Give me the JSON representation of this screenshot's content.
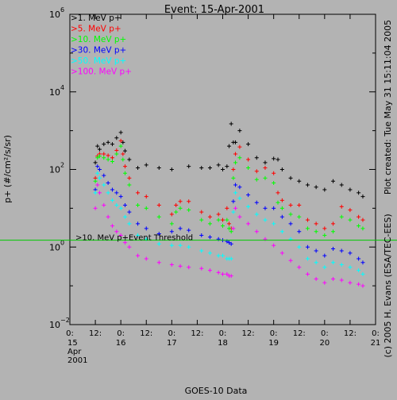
{
  "chart_data": {
    "type": "scatter",
    "title": "Event: 15-Apr-2001",
    "xlabel": "GOES-10 Data",
    "ylabel": "p+ (#/cm²/s/sr)",
    "yscale": "log",
    "ylim": [
      0.01,
      1000000
    ],
    "xlim": [
      0,
      144
    ],
    "x_unit": "hours since 15 Apr 2001 00:00 UT",
    "grid": false,
    "legend_position": "top-left",
    "x_ticks": [
      {
        "x": 0,
        "label": "0:"
      },
      {
        "x": 12,
        "label": "12:"
      },
      {
        "x": 24,
        "label": "0:"
      },
      {
        "x": 36,
        "label": "12:"
      },
      {
        "x": 48,
        "label": "0:"
      },
      {
        "x": 60,
        "label": "12:"
      },
      {
        "x": 72,
        "label": "0:"
      },
      {
        "x": 84,
        "label": "12:"
      },
      {
        "x": 96,
        "label": "0:"
      },
      {
        "x": 108,
        "label": "12:"
      },
      {
        "x": 120,
        "label": "0:"
      },
      {
        "x": 132,
        "label": "12:"
      },
      {
        "x": 144,
        "label": "0:"
      }
    ],
    "day_labels": [
      {
        "x": 0,
        "label": "15"
      },
      {
        "x": 24,
        "label": "16"
      },
      {
        "x": 48,
        "label": "17"
      },
      {
        "x": 72,
        "label": "18"
      },
      {
        "x": 96,
        "label": "19"
      },
      {
        "x": 120,
        "label": "20"
      },
      {
        "x": 144,
        "label": "21"
      }
    ],
    "month_label": "Apr",
    "year_label": "2001",
    "y_ticks": [
      {
        "exp": -2,
        "label": "10",
        "sup": "−2"
      },
      {
        "exp": 0,
        "label": "10",
        "sup": "0"
      },
      {
        "exp": 2,
        "label": "10",
        "sup": "2"
      },
      {
        "exp": 4,
        "label": "10",
        "sup": "4"
      },
      {
        "exp": 6,
        "label": "10",
        "sup": "6"
      }
    ],
    "threshold": {
      "label": ">10. MeV p+Event Threshold",
      "value": 1.5,
      "color": "#00c800"
    },
    "series": [
      {
        "name": ">1. MeV p+",
        "color": "#000000",
        "x": [
          12,
          13,
          14,
          16,
          18,
          20,
          22,
          24,
          25,
          26,
          28,
          32,
          36,
          42,
          48,
          56,
          62,
          66,
          70,
          72,
          74,
          75,
          76,
          77,
          78,
          80,
          84,
          88,
          92,
          96,
          98,
          100,
          104,
          108,
          112,
          116,
          120,
          124,
          128,
          132,
          136,
          138
        ],
        "y": [
          150,
          400,
          330,
          450,
          500,
          450,
          650,
          900,
          500,
          300,
          180,
          110,
          130,
          110,
          100,
          120,
          110,
          110,
          130,
          100,
          120,
          400,
          1500,
          500,
          500,
          1000,
          450,
          200,
          150,
          190,
          180,
          100,
          60,
          50,
          40,
          35,
          30,
          50,
          40,
          30,
          25,
          20
        ]
      },
      {
        "name": ">5. MeV p+",
        "color": "#ff0000",
        "x": [
          12,
          13,
          14,
          16,
          18,
          20,
          22,
          24,
          25,
          26,
          28,
          32,
          36,
          42,
          48,
          50,
          52,
          56,
          62,
          66,
          70,
          72,
          74,
          75,
          76,
          77,
          78,
          80,
          84,
          88,
          92,
          96,
          98,
          100,
          104,
          108,
          112,
          116,
          120,
          124,
          128,
          132,
          136,
          138
        ],
        "y": [
          60,
          220,
          250,
          250,
          230,
          200,
          310,
          550,
          250,
          120,
          60,
          25,
          20,
          12,
          7,
          12,
          15,
          15,
          8,
          6,
          7,
          5,
          10,
          4,
          3,
          100,
          250,
          380,
          180,
          90,
          110,
          80,
          25,
          16,
          12,
          12,
          5,
          4,
          3,
          4,
          11,
          9,
          6,
          5
        ]
      },
      {
        "name": ">10. MeV p+",
        "color": "#00ff00",
        "x": [
          12,
          13,
          14,
          16,
          18,
          20,
          22,
          24,
          25,
          26,
          28,
          32,
          36,
          42,
          48,
          50,
          52,
          56,
          62,
          66,
          70,
          72,
          74,
          75,
          76,
          77,
          78,
          80,
          84,
          88,
          92,
          96,
          98,
          100,
          104,
          108,
          112,
          116,
          120,
          124,
          128,
          132,
          136,
          138
        ],
        "y": [
          50,
          200,
          220,
          200,
          180,
          160,
          250,
          400,
          180,
          80,
          40,
          12,
          10,
          6,
          4,
          8,
          10,
          9,
          5,
          4,
          5,
          3.5,
          5,
          3,
          2.5,
          60,
          150,
          200,
          110,
          55,
          60,
          45,
          14,
          10,
          7,
          6,
          3,
          2.5,
          2,
          2.5,
          6,
          5,
          3.5,
          3
        ]
      },
      {
        "name": ">30. MeV p+",
        "color": "#0000ff",
        "x": [
          12,
          13,
          14,
          16,
          18,
          20,
          22,
          24,
          26,
          28,
          32,
          36,
          42,
          48,
          52,
          56,
          62,
          66,
          70,
          72,
          74,
          75,
          76,
          77,
          78,
          80,
          84,
          88,
          92,
          96,
          100,
          104,
          108,
          112,
          116,
          120,
          124,
          128,
          132,
          136,
          138
        ],
        "y": [
          30,
          120,
          100,
          70,
          45,
          30,
          25,
          20,
          12,
          8,
          4,
          3,
          2.2,
          2.5,
          3,
          2.7,
          2,
          1.8,
          1.6,
          1.5,
          1.4,
          1.3,
          1.2,
          15,
          40,
          35,
          22,
          14,
          10,
          10,
          6,
          4,
          2.5,
          1,
          0.8,
          0.6,
          0.9,
          0.8,
          0.7,
          0.5,
          0.4
        ]
      },
      {
        "name": ">50. MeV p+",
        "color": "#00ffff",
        "x": [
          12,
          13,
          14,
          16,
          18,
          20,
          22,
          24,
          26,
          28,
          32,
          36,
          42,
          48,
          52,
          56,
          62,
          66,
          70,
          72,
          74,
          75,
          76,
          77,
          78,
          80,
          84,
          88,
          92,
          96,
          100,
          104,
          108,
          112,
          116,
          120,
          124,
          128,
          132,
          136,
          138
        ],
        "y": [
          25,
          80,
          60,
          40,
          25,
          16,
          12,
          10,
          6,
          4,
          2,
          1.6,
          1.2,
          1.1,
          1.1,
          1,
          0.8,
          0.7,
          0.6,
          0.6,
          0.5,
          0.5,
          0.5,
          8,
          25,
          18,
          11,
          7,
          5,
          4,
          2.5,
          1.6,
          1,
          0.5,
          0.4,
          0.3,
          0.4,
          0.35,
          0.3,
          0.25,
          0.2
        ]
      },
      {
        "name": ">100. MeV p+",
        "color": "#ff00ff",
        "x": [
          12,
          13,
          14,
          16,
          18,
          20,
          22,
          24,
          26,
          28,
          32,
          36,
          42,
          48,
          52,
          56,
          62,
          66,
          70,
          72,
          74,
          75,
          76,
          77,
          78,
          80,
          84,
          88,
          92,
          96,
          100,
          104,
          108,
          112,
          116,
          120,
          124,
          128,
          132,
          136,
          138
        ],
        "y": [
          10,
          40,
          25,
          12,
          6,
          3.5,
          2.5,
          2,
          1.3,
          1,
          0.6,
          0.5,
          0.4,
          0.35,
          0.32,
          0.3,
          0.28,
          0.25,
          0.22,
          0.2,
          0.2,
          0.18,
          0.18,
          3,
          10,
          6,
          4,
          2.5,
          1.6,
          1.1,
          0.7,
          0.45,
          0.3,
          0.2,
          0.15,
          0.12,
          0.15,
          0.14,
          0.12,
          0.11,
          0.1
        ]
      }
    ]
  },
  "side_texts": {
    "created": "Plot created: Tue May 31 15:11:04 2005",
    "credit": "(c) 2005 H. Evans (ESA/TEC-EES)"
  }
}
